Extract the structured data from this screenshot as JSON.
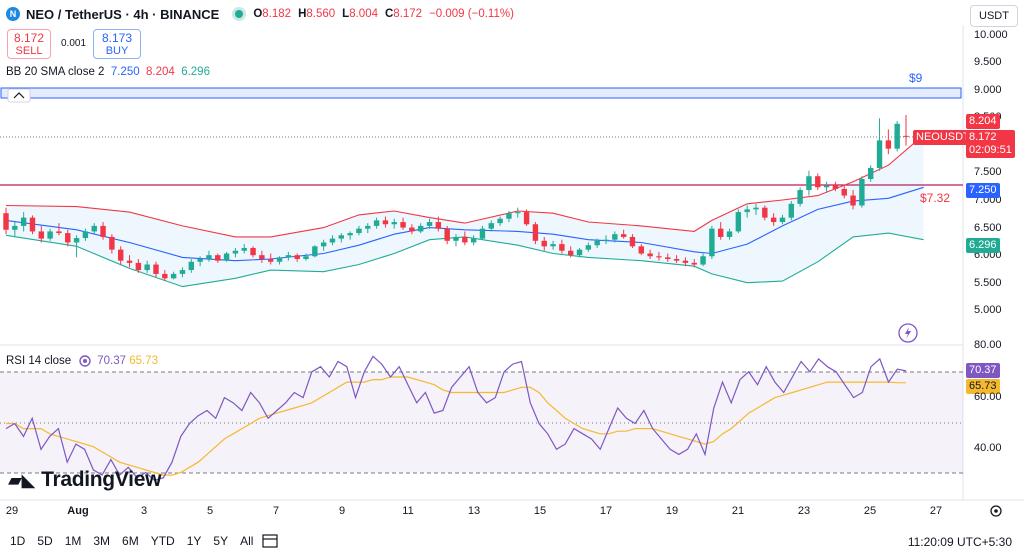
{
  "header": {
    "symbol_title": "NEO / TetherUS · 4h · BINANCE",
    "ohlc": {
      "o_label": "O",
      "o": "8.182",
      "h_label": "H",
      "h": "8.560",
      "l_label": "L",
      "l": "8.004",
      "c_label": "C",
      "c": "8.172",
      "change": "−0.009 (−0.11%)"
    },
    "currency": "USDT"
  },
  "trade": {
    "sell_price": "8.172",
    "sell_label": "SELL",
    "spread": "0.001",
    "buy_price": "8.173",
    "buy_label": "BUY"
  },
  "bb_legend": {
    "name": "BB 20 SMA close 2",
    "basis": "7.250",
    "upper": "8.204",
    "lower": "6.296"
  },
  "rsi_legend": {
    "name": "RSI 14 close",
    "rsi": "70.37",
    "ma": "65.73"
  },
  "price_axis": [
    "10.000",
    "9.500",
    "9.000",
    "8.500",
    "7.500",
    "7.000",
    "6.500",
    "6.000",
    "5.500",
    "5.000"
  ],
  "rsi_axis": [
    "80.00",
    "60.00",
    "40.00"
  ],
  "price_tags": {
    "upper": "8.204",
    "symbol": "NEOUSDT",
    "last": "8.172",
    "countdown": "02:09:51",
    "basis": "7.250",
    "lower": "6.296",
    "rsi": "70.37",
    "rsi_ma": "65.73"
  },
  "annotations": {
    "level_9": "$9",
    "level_732": "$7.32"
  },
  "x_axis": [
    "29",
    "Aug",
    "3",
    "5",
    "7",
    "9",
    "11",
    "13",
    "15",
    "17",
    "19",
    "21",
    "23",
    "25",
    "27"
  ],
  "timeframes": [
    "1D",
    "5D",
    "1M",
    "3M",
    "6M",
    "YTD",
    "1Y",
    "5Y",
    "All"
  ],
  "clock": "11:20:09 UTC+5:30",
  "brand": "TradingView",
  "colors": {
    "up": "#22ab94",
    "down": "#f23645",
    "basis": "#2962ff",
    "upper": "#f23645",
    "lower": "#22ab94",
    "rsi": "#7e57c2",
    "rsi_ma": "#f5b930"
  },
  "chart_data": {
    "type": "candlestick",
    "y_range": [
      4.7,
      10.1
    ],
    "candles": [
      [
        6.78,
        6.88,
        6.4,
        6.48
      ],
      [
        6.48,
        6.62,
        6.35,
        6.55
      ],
      [
        6.55,
        6.8,
        6.45,
        6.7
      ],
      [
        6.7,
        6.74,
        6.4,
        6.45
      ],
      [
        6.45,
        6.55,
        6.25,
        6.32
      ],
      [
        6.32,
        6.5,
        6.28,
        6.45
      ],
      [
        6.45,
        6.6,
        6.38,
        6.42
      ],
      [
        6.42,
        6.48,
        6.18,
        6.25
      ],
      [
        6.25,
        6.38,
        5.98,
        6.33
      ],
      [
        6.33,
        6.5,
        6.28,
        6.45
      ],
      [
        6.45,
        6.6,
        6.4,
        6.55
      ],
      [
        6.55,
        6.62,
        6.3,
        6.35
      ],
      [
        6.35,
        6.4,
        6.05,
        6.12
      ],
      [
        6.12,
        6.18,
        5.85,
        5.92
      ],
      [
        5.92,
        6.02,
        5.8,
        5.88
      ],
      [
        5.88,
        5.95,
        5.7,
        5.75
      ],
      [
        5.75,
        5.92,
        5.7,
        5.85
      ],
      [
        5.85,
        5.9,
        5.62,
        5.68
      ],
      [
        5.68,
        5.75,
        5.55,
        5.6
      ],
      [
        5.6,
        5.72,
        5.58,
        5.68
      ],
      [
        5.68,
        5.8,
        5.62,
        5.75
      ],
      [
        5.75,
        5.95,
        5.7,
        5.9
      ],
      [
        5.9,
        6.0,
        5.82,
        5.95
      ],
      [
        5.95,
        6.1,
        5.9,
        6.02
      ],
      [
        6.02,
        6.05,
        5.88,
        5.92
      ],
      [
        5.92,
        6.08,
        5.9,
        6.05
      ],
      [
        6.05,
        6.15,
        5.98,
        6.1
      ],
      [
        6.1,
        6.22,
        6.05,
        6.15
      ],
      [
        6.15,
        6.18,
        5.98,
        6.02
      ],
      [
        6.02,
        6.1,
        5.88,
        5.95
      ],
      [
        5.95,
        6.05,
        5.85,
        5.9
      ],
      [
        5.9,
        6.0,
        5.85,
        5.98
      ],
      [
        5.98,
        6.08,
        5.92,
        6.02
      ],
      [
        6.02,
        6.05,
        5.9,
        5.95
      ],
      [
        5.95,
        6.05,
        5.92,
        6.0
      ],
      [
        6.0,
        6.2,
        5.98,
        6.18
      ],
      [
        6.18,
        6.3,
        6.1,
        6.25
      ],
      [
        6.25,
        6.38,
        6.2,
        6.32
      ],
      [
        6.32,
        6.42,
        6.25,
        6.38
      ],
      [
        6.38,
        6.45,
        6.3,
        6.42
      ],
      [
        6.42,
        6.55,
        6.38,
        6.5
      ],
      [
        6.5,
        6.6,
        6.42,
        6.55
      ],
      [
        6.55,
        6.7,
        6.5,
        6.65
      ],
      [
        6.65,
        6.72,
        6.52,
        6.58
      ],
      [
        6.58,
        6.68,
        6.5,
        6.62
      ],
      [
        6.62,
        6.7,
        6.48,
        6.52
      ],
      [
        6.52,
        6.58,
        6.4,
        6.45
      ],
      [
        6.45,
        6.6,
        6.42,
        6.55
      ],
      [
        6.55,
        6.68,
        6.5,
        6.62
      ],
      [
        6.62,
        6.72,
        6.45,
        6.5
      ],
      [
        6.5,
        6.55,
        6.22,
        6.28
      ],
      [
        6.28,
        6.4,
        6.18,
        6.35
      ],
      [
        6.35,
        6.45,
        6.2,
        6.25
      ],
      [
        6.25,
        6.38,
        6.2,
        6.32
      ],
      [
        6.32,
        6.55,
        6.3,
        6.5
      ],
      [
        6.5,
        6.65,
        6.45,
        6.6
      ],
      [
        6.6,
        6.72,
        6.55,
        6.68
      ],
      [
        6.68,
        6.82,
        6.62,
        6.78
      ],
      [
        6.78,
        6.88,
        6.7,
        6.8
      ],
      [
        6.8,
        6.85,
        6.55,
        6.58
      ],
      [
        6.58,
        6.62,
        6.22,
        6.28
      ],
      [
        6.28,
        6.35,
        6.1,
        6.18
      ],
      [
        6.18,
        6.28,
        6.12,
        6.22
      ],
      [
        6.22,
        6.3,
        6.05,
        6.1
      ],
      [
        6.1,
        6.18,
        5.98,
        6.02
      ],
      [
        6.02,
        6.15,
        5.98,
        6.12
      ],
      [
        6.12,
        6.25,
        6.08,
        6.2
      ],
      [
        6.2,
        6.32,
        6.15,
        6.28
      ],
      [
        6.28,
        6.38,
        6.22,
        6.3
      ],
      [
        6.3,
        6.45,
        6.25,
        6.4
      ],
      [
        6.4,
        6.48,
        6.32,
        6.35
      ],
      [
        6.35,
        6.4,
        6.15,
        6.18
      ],
      [
        6.18,
        6.22,
        6.02,
        6.05
      ],
      [
        6.05,
        6.12,
        5.95,
        6.0
      ],
      [
        6.0,
        6.08,
        5.92,
        5.98
      ],
      [
        5.98,
        6.05,
        5.9,
        5.95
      ],
      [
        5.95,
        6.02,
        5.88,
        5.92
      ],
      [
        5.92,
        5.98,
        5.82,
        5.88
      ],
      [
        5.88,
        5.95,
        5.8,
        5.85
      ],
      [
        5.85,
        6.05,
        5.82,
        6.0
      ],
      [
        6.0,
        6.55,
        5.95,
        6.5
      ],
      [
        6.5,
        6.62,
        6.3,
        6.35
      ],
      [
        6.35,
        6.5,
        6.3,
        6.45
      ],
      [
        6.45,
        6.85,
        6.42,
        6.8
      ],
      [
        6.8,
        6.92,
        6.7,
        6.85
      ],
      [
        6.85,
        6.95,
        6.75,
        6.88
      ],
      [
        6.88,
        6.92,
        6.65,
        6.7
      ],
      [
        6.7,
        6.78,
        6.55,
        6.62
      ],
      [
        6.62,
        6.75,
        6.58,
        6.7
      ],
      [
        6.7,
        7.0,
        6.65,
        6.95
      ],
      [
        6.95,
        7.25,
        6.9,
        7.2
      ],
      [
        7.2,
        7.55,
        7.1,
        7.45
      ],
      [
        7.45,
        7.5,
        7.2,
        7.25
      ],
      [
        7.25,
        7.35,
        7.15,
        7.28
      ],
      [
        7.28,
        7.35,
        7.18,
        7.22
      ],
      [
        7.22,
        7.3,
        7.05,
        7.1
      ],
      [
        7.1,
        7.2,
        6.85,
        6.92
      ],
      [
        6.92,
        7.45,
        6.88,
        7.4
      ],
      [
        7.4,
        7.65,
        7.35,
        7.6
      ],
      [
        7.6,
        8.5,
        7.55,
        8.1
      ],
      [
        8.1,
        8.3,
        7.85,
        7.95
      ],
      [
        7.95,
        8.45,
        7.9,
        8.4
      ],
      [
        8.182,
        8.56,
        8.004,
        8.172
      ]
    ],
    "bb_upper_points": [
      [
        0,
        6.92
      ],
      [
        8,
        6.9
      ],
      [
        14,
        6.8
      ],
      [
        20,
        6.55
      ],
      [
        26,
        6.35
      ],
      [
        30,
        6.35
      ],
      [
        36,
        6.52
      ],
      [
        40,
        6.75
      ],
      [
        44,
        6.82
      ],
      [
        48,
        6.7
      ],
      [
        52,
        6.6
      ],
      [
        58,
        6.82
      ],
      [
        62,
        6.78
      ],
      [
        66,
        6.62
      ],
      [
        72,
        6.55
      ],
      [
        78,
        6.45
      ],
      [
        80,
        6.65
      ],
      [
        84,
        6.95
      ],
      [
        88,
        7.02
      ],
      [
        92,
        7.1
      ],
      [
        96,
        7.35
      ],
      [
        100,
        7.65
      ],
      [
        104,
        8.2
      ]
    ],
    "bb_basis_points": [
      [
        0,
        6.65
      ],
      [
        8,
        6.48
      ],
      [
        14,
        6.25
      ],
      [
        20,
        5.98
      ],
      [
        26,
        5.92
      ],
      [
        30,
        5.95
      ],
      [
        36,
        6.05
      ],
      [
        40,
        6.2
      ],
      [
        44,
        6.4
      ],
      [
        48,
        6.52
      ],
      [
        52,
        6.48
      ],
      [
        58,
        6.45
      ],
      [
        62,
        6.4
      ],
      [
        66,
        6.3
      ],
      [
        72,
        6.25
      ],
      [
        78,
        6.08
      ],
      [
        80,
        6.05
      ],
      [
        84,
        6.22
      ],
      [
        88,
        6.55
      ],
      [
        92,
        6.85
      ],
      [
        96,
        7.0
      ],
      [
        100,
        7.05
      ],
      [
        104,
        7.25
      ]
    ],
    "bb_lower_points": [
      [
        0,
        6.38
      ],
      [
        8,
        6.18
      ],
      [
        14,
        5.78
      ],
      [
        20,
        5.45
      ],
      [
        26,
        5.6
      ],
      [
        30,
        5.75
      ],
      [
        36,
        5.72
      ],
      [
        40,
        5.85
      ],
      [
        44,
        6.05
      ],
      [
        48,
        6.3
      ],
      [
        52,
        6.35
      ],
      [
        58,
        6.2
      ],
      [
        62,
        6.05
      ],
      [
        66,
        5.98
      ],
      [
        72,
        5.92
      ],
      [
        78,
        5.82
      ],
      [
        80,
        5.68
      ],
      [
        84,
        5.52
      ],
      [
        88,
        5.55
      ],
      [
        92,
        5.9
      ],
      [
        96,
        6.35
      ],
      [
        100,
        6.42
      ],
      [
        104,
        6.3
      ]
    ],
    "rsi_range": [
      25,
      80
    ],
    "rsi_values": [
      48,
      50,
      45,
      52,
      40,
      45,
      48,
      35,
      42,
      40,
      32,
      30,
      36,
      30,
      33,
      29,
      31,
      28,
      29,
      35,
      45,
      50,
      53,
      55,
      52,
      60,
      58,
      55,
      62,
      58,
      52,
      55,
      58,
      62,
      60,
      70,
      72,
      68,
      74,
      72,
      60,
      70,
      76,
      73,
      68,
      72,
      65,
      58,
      62,
      54,
      55,
      64,
      68,
      72,
      62,
      58,
      60,
      70,
      73,
      74,
      58,
      50,
      46,
      40,
      42,
      48,
      46,
      44,
      40,
      48,
      56,
      52,
      50,
      55,
      48,
      44,
      40,
      38,
      40,
      46,
      38,
      56,
      66,
      58,
      67,
      70,
      65,
      72,
      66,
      62,
      68,
      74,
      70,
      75,
      72,
      70,
      65,
      60,
      62,
      72,
      75,
      66,
      71,
      70.37
    ],
    "rsi_ma_values": [
      50,
      50,
      48,
      48,
      48,
      46,
      45,
      44,
      43,
      42,
      41,
      39,
      37,
      35,
      34,
      33,
      32,
      31,
      30,
      30,
      31,
      33,
      35,
      38,
      41,
      44,
      46,
      48,
      50,
      52,
      53,
      54,
      55,
      56,
      57,
      58,
      60,
      62,
      64,
      66,
      66,
      66,
      67,
      67,
      68,
      68,
      68,
      67,
      66,
      65,
      63,
      62,
      62,
      62,
      62,
      62,
      62,
      62,
      63,
      64,
      64,
      62,
      58,
      55,
      52,
      50,
      48,
      47,
      46,
      46,
      47,
      47,
      48,
      48,
      48,
      47,
      46,
      45,
      44,
      43,
      42,
      43,
      46,
      48,
      51,
      54,
      56,
      58,
      60,
      61,
      62,
      63,
      64,
      65,
      66,
      66,
      66,
      66,
      66,
      66,
      66,
      66,
      65.8,
      65.73
    ]
  }
}
